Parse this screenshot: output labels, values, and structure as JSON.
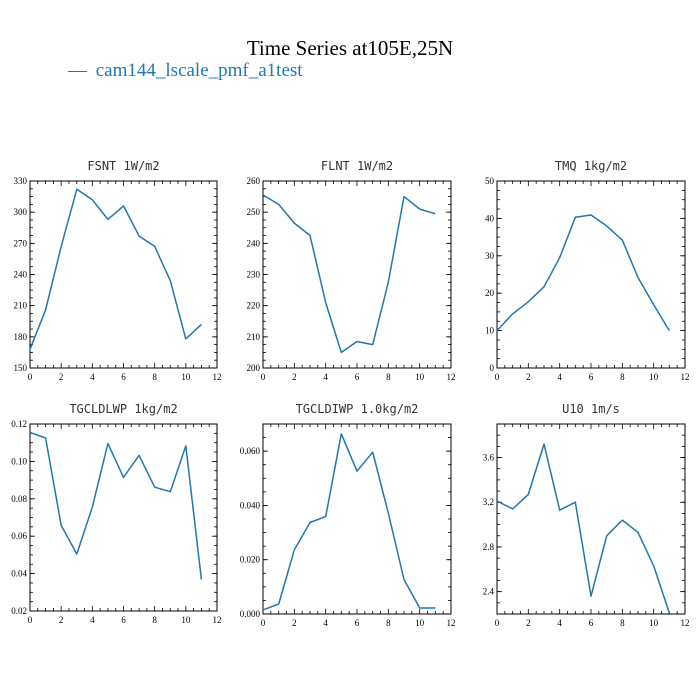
{
  "title": "Time Series at105E,25N",
  "legend": {
    "marker": "—",
    "label": "cam144_lscale_pmf_a1test",
    "color": "#1f77b4"
  },
  "chart_data": [
    {
      "type": "line",
      "title": "FSNT  1W/m2",
      "x": [
        0,
        1,
        2,
        3,
        4,
        5,
        6,
        7,
        8,
        9,
        10,
        11
      ],
      "values": [
        168,
        206,
        267,
        322,
        312,
        293,
        306,
        277,
        267,
        234,
        178,
        192
      ],
      "xlim": [
        0,
        12
      ],
      "ylim": [
        150,
        330
      ],
      "xticks": [
        0,
        2,
        4,
        6,
        8,
        10,
        12
      ],
      "yticks": [
        150,
        180,
        210,
        240,
        270,
        300,
        330
      ],
      "yticklabels": [
        "150",
        "180",
        "210",
        "240",
        "270",
        "300",
        "330"
      ]
    },
    {
      "type": "line",
      "title": "FLNT  1W/m2",
      "x": [
        0,
        1,
        2,
        3,
        4,
        5,
        6,
        7,
        8,
        9,
        10,
        11
      ],
      "values": [
        255.5,
        252.5,
        246.5,
        242.5,
        221,
        205,
        208.5,
        207.5,
        227.5,
        255,
        251,
        249.5
      ],
      "xlim": [
        0,
        12
      ],
      "ylim": [
        200,
        260
      ],
      "xticks": [
        0,
        2,
        4,
        6,
        8,
        10,
        12
      ],
      "yticks": [
        200,
        210,
        220,
        230,
        240,
        250,
        260
      ],
      "yticklabels": [
        "200",
        "210",
        "220",
        "230",
        "240",
        "250",
        "260"
      ]
    },
    {
      "type": "line",
      "title": "TMQ  1kg/m2",
      "x": [
        0,
        1,
        2,
        3,
        4,
        5,
        6,
        7,
        8,
        9,
        10,
        11
      ],
      "values": [
        10,
        14.5,
        17.7,
        21.7,
        29.5,
        40.3,
        40.9,
        38,
        34.2,
        24.2,
        16.9,
        10
      ],
      "xlim": [
        0,
        12
      ],
      "ylim": [
        0,
        50
      ],
      "xticks": [
        0,
        2,
        4,
        6,
        8,
        10,
        12
      ],
      "yticks": [
        0,
        10,
        20,
        30,
        40,
        50
      ],
      "yticklabels": [
        "0",
        "10",
        "20",
        "30",
        "40",
        "50"
      ]
    },
    {
      "type": "line",
      "title": "TGCLDLWP  1kg/m2",
      "x": [
        0,
        1,
        2,
        3,
        4,
        5,
        6,
        7,
        8,
        9,
        10,
        11
      ],
      "values": [
        0.1155,
        0.1125,
        0.0658,
        0.0505,
        0.0755,
        0.1095,
        0.0915,
        0.1032,
        0.0862,
        0.0838,
        0.1083,
        0.0368
      ],
      "xlim": [
        0,
        12
      ],
      "ylim": [
        0.02,
        0.12
      ],
      "xticks": [
        0,
        2,
        4,
        6,
        8,
        10,
        12
      ],
      "yticks": [
        0.02,
        0.04,
        0.06,
        0.08,
        0.1,
        0.12
      ],
      "yticklabels": [
        "0.02",
        "0.04",
        "0.06",
        "0.08",
        "0.10",
        "0.12"
      ]
    },
    {
      "type": "line",
      "title": "TGCLDIWP  1.0kg/m2",
      "x": [
        0,
        1,
        2,
        3,
        4,
        5,
        6,
        7,
        8,
        9,
        10,
        11
      ],
      "values": [
        0.0015,
        0.0037,
        0.0236,
        0.0337,
        0.0359,
        0.0664,
        0.0526,
        0.0596,
        0.0372,
        0.0127,
        0.0022,
        0.0022
      ],
      "xlim": [
        0,
        12
      ],
      "ylim": [
        0,
        0.07
      ],
      "xticks": [
        0,
        2,
        4,
        6,
        8,
        10,
        12
      ],
      "yticks": [
        0.0,
        0.02,
        0.04,
        0.06
      ],
      "yticklabels": [
        "0.000",
        "0.020",
        "0.040",
        "0.060"
      ]
    },
    {
      "type": "line",
      "title": "U10  1m/s",
      "x": [
        0,
        1,
        2,
        3,
        4,
        5,
        6,
        7,
        8,
        9,
        10,
        11
      ],
      "values": [
        3.21,
        3.14,
        3.27,
        3.72,
        3.13,
        3.2,
        2.36,
        2.9,
        3.04,
        2.93,
        2.63,
        2.21
      ],
      "xlim": [
        0,
        12
      ],
      "ylim": [
        2.2,
        3.9
      ],
      "xticks": [
        0,
        2,
        4,
        6,
        8,
        10,
        12
      ],
      "yticks": [
        2.4,
        2.8,
        3.2,
        3.6
      ],
      "yticklabels": [
        "2.4",
        "2.8",
        "3.2",
        "3.6"
      ]
    }
  ]
}
